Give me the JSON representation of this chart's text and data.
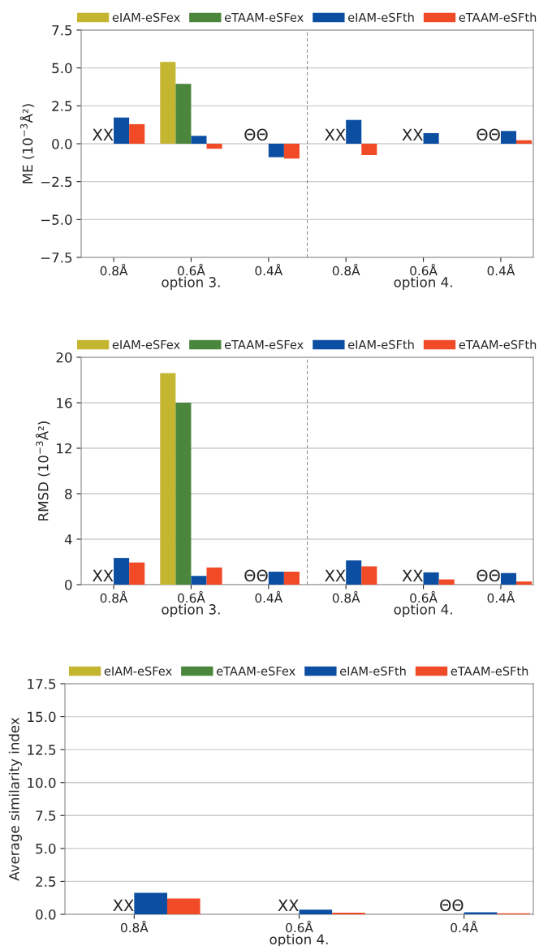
{
  "chart_data": [
    {
      "type": "bar",
      "ylabel": "ME (10$^{−3}$Å²)",
      "categories": [
        "0.8Å",
        "0.6Å",
        "0.4Å",
        "0.8Å",
        "0.6Å",
        "0.4Å"
      ],
      "ylim": [
        -7.5,
        7.5
      ],
      "yticks": [
        -7.5,
        {
          "value": -5,
          "label": "−5.0"
        },
        -2.5,
        {
          "value": 0,
          "label": "0.0"
        },
        2.5,
        {
          "value": 5,
          "label": "5.0"
        },
        7.5
      ],
      "grid": "y",
      "legend": "top",
      "series": [
        {
          "name": "eIAM-eSFex",
          "color": "#c4b630",
          "values": [
            null,
            5.4,
            null,
            null,
            null,
            null
          ],
          "value_labels": [
            "XX",
            null,
            "ΘΘ",
            "XX",
            "XX",
            "ΘΘ"
          ]
        },
        {
          "name": "eTAAM-eSFex",
          "color": "#4a873c",
          "values": [
            null,
            3.95,
            null,
            null,
            null,
            null
          ]
        },
        {
          "name": "eIAM-eSFth",
          "color": "#0b4ea2",
          "values": [
            1.73,
            0.52,
            -0.89,
            1.57,
            0.7,
            0.84
          ]
        },
        {
          "name": "eTAAM-eSFth",
          "color": "#f04a26",
          "values": [
            1.29,
            -0.33,
            -0.98,
            -0.75,
            null,
            0.23
          ]
        }
      ],
      "annotations": [
        "option 3.",
        "option 4."
      ]
    },
    {
      "type": "bar",
      "ylabel": "RMSD (10$^{−3}$Å²)",
      "categories": [
        "0.8Å",
        "0.6Å",
        "0.4Å",
        "0.8Å",
        "0.6Å",
        "0.4Å"
      ],
      "ylim": [
        0,
        20
      ],
      "yticks": [
        0,
        4,
        8,
        12,
        16,
        20
      ],
      "grid": "y",
      "legend": "top",
      "series": [
        {
          "name": "eIAM-eSFex",
          "color": "#c4b630",
          "values": [
            null,
            18.6,
            null,
            null,
            null,
            null
          ],
          "value_labels": [
            "XX",
            null,
            "ΘΘ",
            "XX",
            "XX",
            "ΘΘ"
          ]
        },
        {
          "name": "eTAAM-eSFex",
          "color": "#4a873c",
          "values": [
            null,
            16.0,
            null,
            null,
            null,
            null
          ]
        },
        {
          "name": "eIAM-eSFth",
          "color": "#0b4ea2",
          "values": [
            2.35,
            0.77,
            1.14,
            2.13,
            1.08,
            1.02
          ]
        },
        {
          "name": "eTAAM-eSFth",
          "color": "#f04a26",
          "values": [
            1.95,
            1.51,
            1.14,
            1.61,
            0.46,
            0.28
          ]
        }
      ],
      "annotations": [
        "option 3.",
        "option 4."
      ]
    },
    {
      "type": "bar",
      "ylabel": "Average similarity index",
      "categories": [
        "0.8Å",
        "0.6Å",
        "0.4Å"
      ],
      "ylim": [
        0,
        17.5
      ],
      "yticks": [
        {
          "value": 0,
          "label": "0.0"
        },
        2.5,
        {
          "value": 5,
          "label": "5.0"
        },
        7.5,
        {
          "value": 10,
          "label": "10.0"
        },
        12.5,
        {
          "value": 15,
          "label": "15.0"
        },
        17.5
      ],
      "grid": "y",
      "legend": "top",
      "series": [
        {
          "name": "eIAM-eSFex",
          "color": "#c4b630",
          "values": [
            null,
            null,
            null
          ],
          "value_labels": [
            "XX",
            "XX",
            "ΘΘ"
          ]
        },
        {
          "name": "eTAAM-eSFex",
          "color": "#4a873c",
          "values": [
            null,
            null,
            null
          ]
        },
        {
          "name": "eIAM-eSFth",
          "color": "#0b4ea2",
          "values": [
            1.63,
            0.35,
            0.16
          ]
        },
        {
          "name": "eTAAM-eSFth",
          "color": "#f04a26",
          "values": [
            1.2,
            0.13,
            0.08
          ]
        }
      ],
      "annotations": [
        "option 4."
      ]
    }
  ]
}
